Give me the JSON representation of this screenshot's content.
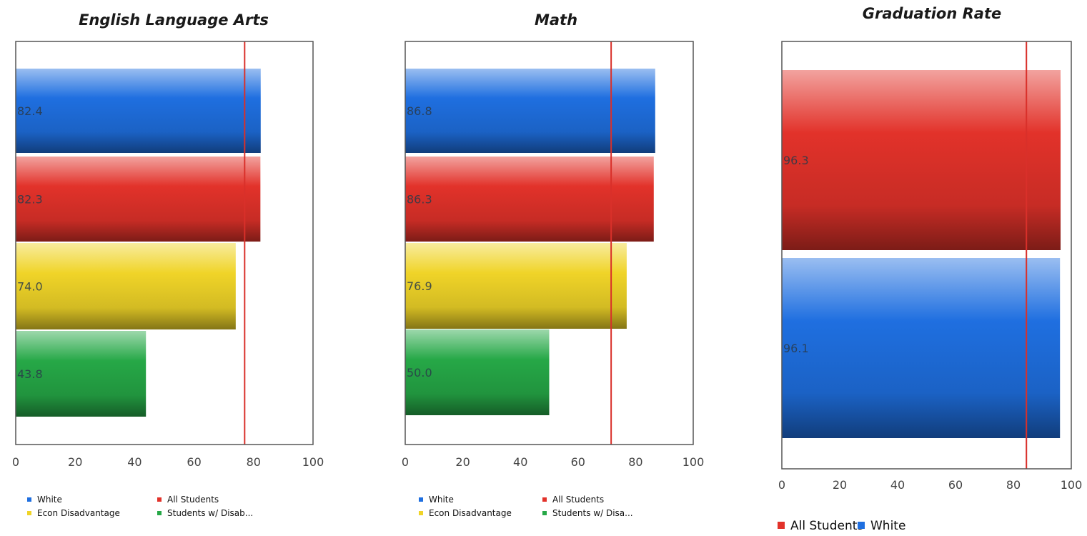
{
  "colors": {
    "White": "#1f6fe0",
    "All Students": "#e2322a",
    "Econ Disadvantage": "#f0d428",
    "Students w/ Disabilities": "#26a847",
    "target_line": "#d9302a"
  },
  "chart_data": [
    {
      "type": "bar",
      "orientation": "horizontal",
      "title": "English Language Arts",
      "categories": [
        "White",
        "All Students",
        "Econ Disadvantage",
        "Students w/ Disabilities"
      ],
      "values": [
        82.4,
        82.3,
        74.0,
        43.8
      ],
      "data_labels": [
        "82.4",
        "82.3",
        "74.0",
        "43.8"
      ],
      "xlim": [
        0,
        100
      ],
      "ticks": [
        0,
        20,
        40,
        60,
        80,
        100
      ],
      "target_line": 77,
      "legend": {
        "placement": "bottom",
        "entries": [
          {
            "label": "White",
            "series": "White"
          },
          {
            "label": "All Students",
            "series": "All Students"
          },
          {
            "label": "Econ Disadvantage",
            "series": "Econ Disadvantage"
          },
          {
            "label": "Students w/ Disab...",
            "series": "Students w/ Disabilities"
          }
        ]
      }
    },
    {
      "type": "bar",
      "orientation": "horizontal",
      "title": "Math",
      "categories": [
        "White",
        "All Students",
        "Econ Disadvantage",
        "Students w/ Disabilities"
      ],
      "values": [
        86.8,
        86.3,
        76.9,
        50.0
      ],
      "data_labels": [
        "86.8",
        "86.3",
        "76.9",
        "50.0"
      ],
      "xlim": [
        0,
        100
      ],
      "ticks": [
        0,
        20,
        40,
        60,
        80,
        100
      ],
      "target_line": 71.5,
      "legend": {
        "placement": "bottom",
        "entries": [
          {
            "label": "White",
            "series": "White"
          },
          {
            "label": "All Students",
            "series": "All Students"
          },
          {
            "label": "Econ Disadvantage",
            "series": "Econ Disadvantage"
          },
          {
            "label": "Students w/ Disa...",
            "series": "Students w/ Disabilities"
          }
        ]
      }
    },
    {
      "type": "bar",
      "orientation": "horizontal",
      "title": "Graduation Rate",
      "categories": [
        "All Students",
        "White"
      ],
      "values": [
        96.3,
        96.1
      ],
      "data_labels": [
        "96.3",
        "96.1"
      ],
      "xlim": [
        0,
        100
      ],
      "ticks": [
        0,
        20,
        40,
        60,
        80,
        100
      ],
      "target_line": 84.5,
      "legend": {
        "placement": "bottom",
        "entries": [
          {
            "label": "All Students",
            "series": "All Students"
          },
          {
            "label": "White",
            "series": "White"
          }
        ]
      }
    }
  ]
}
